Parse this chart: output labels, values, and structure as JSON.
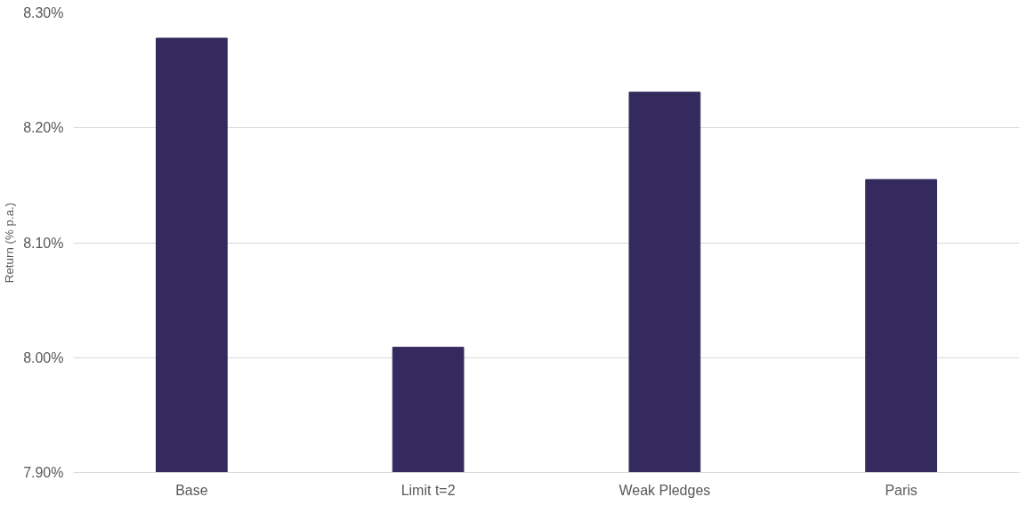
{
  "chart_data": {
    "type": "bar",
    "ylabel": "Return (% p.a.)",
    "categories": [
      "Base",
      "Limit t=2",
      "Weak Pledges",
      "Paris"
    ],
    "values": [
      8.278,
      8.009,
      8.231,
      8.155
    ],
    "color": "#352a5e",
    "ylim": [
      7.9,
      8.3
    ],
    "yticks": [
      {
        "value": 7.9,
        "label": "7.90%"
      },
      {
        "value": 8.0,
        "label": "8.00%"
      },
      {
        "value": 8.1,
        "label": "8.10%"
      },
      {
        "value": 8.2,
        "label": "8.20%"
      },
      {
        "value": 8.3,
        "label": "8.30%"
      }
    ],
    "grid": "y"
  }
}
